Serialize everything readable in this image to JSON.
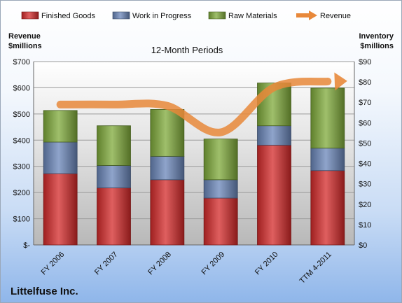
{
  "company": "Littelfuse Inc.",
  "chart_data": {
    "type": "bar",
    "stacked": true,
    "title": "12-Month Periods",
    "categories": [
      "FY 2006",
      "FY 2007",
      "FY 2008",
      "FY 2009",
      "FY 2010",
      "TTM 4-2011"
    ],
    "series": [
      {
        "name": "Finished Goods",
        "axis": "right",
        "color": "#d42a2a",
        "values": [
          35,
          28,
          32,
          23,
          49,
          36.5
        ]
      },
      {
        "name": "Work in Progress",
        "axis": "right",
        "color": "#6a86b9",
        "values": [
          15.5,
          11,
          11.5,
          9,
          9.5,
          11
        ]
      },
      {
        "name": "Raw Materials",
        "axis": "right",
        "color": "#7faa3a",
        "values": [
          15.5,
          19.5,
          23,
          20,
          21,
          29.5
        ]
      }
    ],
    "line_series": {
      "name": "Revenue",
      "axis": "left",
      "color": "#e8883a",
      "values": [
        536,
        536,
        531,
        430,
        602,
        624
      ]
    },
    "left_axis": {
      "label_line1": "Revenue",
      "label_line2": "$millions",
      "ylim": [
        0,
        700
      ],
      "ticks": [
        "$-",
        "$100",
        "$200",
        "$300",
        "$400",
        "$500",
        "$600",
        "$700"
      ]
    },
    "right_axis": {
      "label_line1": "Inventory",
      "label_line2": "$millions",
      "ylim": [
        0,
        90
      ],
      "ticks": [
        "$0",
        "$10",
        "$20",
        "$30",
        "$40",
        "$50",
        "$60",
        "$70",
        "$80",
        "$90"
      ]
    },
    "legend_position": "top",
    "grid": true
  }
}
